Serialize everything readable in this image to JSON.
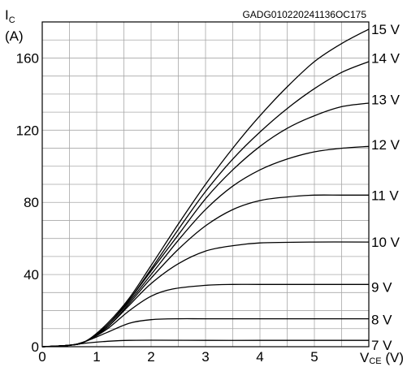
{
  "chart_data": {
    "type": "line",
    "code": "GADG010220241136OC175",
    "y_axis": {
      "symbol": "I",
      "subscript": "C",
      "unit": "(A)"
    },
    "x_axis": {
      "symbol": "V",
      "subscript": "CE",
      "unit": "(V)"
    },
    "xlim": [
      0,
      6
    ],
    "ylim": [
      0,
      180
    ],
    "x_ticks": [
      0,
      1,
      2,
      3,
      4,
      5
    ],
    "y_ticks": [
      0,
      40,
      80,
      120,
      160
    ],
    "grid": {
      "x_step": 0.5,
      "y_step": 10,
      "visible": true
    },
    "series": [
      {
        "name": "7 V",
        "label_y": 1,
        "points": [
          [
            0,
            0
          ],
          [
            0.5,
            0.8
          ],
          [
            0.8,
            2
          ],
          [
            1.2,
            3
          ],
          [
            1.6,
            3.5
          ],
          [
            2,
            3.6
          ],
          [
            3,
            3.5
          ],
          [
            4,
            3.5
          ],
          [
            5,
            3.5
          ],
          [
            6,
            3.5
          ]
        ]
      },
      {
        "name": "8 V",
        "label_y": 15,
        "points": [
          [
            0,
            0
          ],
          [
            0.5,
            0.8
          ],
          [
            0.8,
            3
          ],
          [
            1.2,
            8
          ],
          [
            1.6,
            13
          ],
          [
            2,
            15
          ],
          [
            2.5,
            15.5
          ],
          [
            3,
            15.5
          ],
          [
            4,
            15.5
          ],
          [
            5,
            15.5
          ],
          [
            6,
            15.5
          ]
        ]
      },
      {
        "name": "9 V",
        "label_y": 33,
        "points": [
          [
            0,
            0
          ],
          [
            0.5,
            0.8
          ],
          [
            0.8,
            3
          ],
          [
            1.2,
            10
          ],
          [
            1.6,
            20
          ],
          [
            2,
            28
          ],
          [
            2.4,
            32
          ],
          [
            3,
            34
          ],
          [
            3.5,
            34.5
          ],
          [
            4,
            34.5
          ],
          [
            5,
            34.5
          ],
          [
            6,
            34.5
          ]
        ]
      },
      {
        "name": "10 V",
        "label_y": 58,
        "points": [
          [
            0,
            0
          ],
          [
            0.5,
            0.8
          ],
          [
            0.8,
            3
          ],
          [
            1.2,
            11
          ],
          [
            1.6,
            23
          ],
          [
            2,
            35
          ],
          [
            2.5,
            46
          ],
          [
            3,
            53
          ],
          [
            3.5,
            56
          ],
          [
            4,
            57.5
          ],
          [
            5,
            58
          ],
          [
            6,
            58
          ]
        ]
      },
      {
        "name": "11 V",
        "label_y": 84,
        "points": [
          [
            0,
            0
          ],
          [
            0.5,
            0.8
          ],
          [
            0.8,
            3
          ],
          [
            1.2,
            11
          ],
          [
            1.6,
            24
          ],
          [
            2,
            38
          ],
          [
            2.5,
            54
          ],
          [
            3,
            67
          ],
          [
            3.5,
            76
          ],
          [
            4,
            81
          ],
          [
            4.5,
            83
          ],
          [
            5,
            84
          ],
          [
            5.5,
            84
          ],
          [
            6,
            84
          ]
        ]
      },
      {
        "name": "12 V",
        "label_y": 112,
        "points": [
          [
            0,
            0
          ],
          [
            0.5,
            0.8
          ],
          [
            0.8,
            3
          ],
          [
            1.2,
            12
          ],
          [
            1.6,
            25
          ],
          [
            2,
            40
          ],
          [
            2.5,
            59
          ],
          [
            3,
            76
          ],
          [
            3.5,
            89
          ],
          [
            4,
            98
          ],
          [
            4.5,
            104
          ],
          [
            5,
            108
          ],
          [
            5.5,
            110
          ],
          [
            6,
            111
          ]
        ]
      },
      {
        "name": "13 V",
        "label_y": 137,
        "points": [
          [
            0,
            0
          ],
          [
            0.5,
            0.8
          ],
          [
            0.8,
            3
          ],
          [
            1.2,
            12
          ],
          [
            1.6,
            26
          ],
          [
            2,
            42
          ],
          [
            2.5,
            62
          ],
          [
            3,
            82
          ],
          [
            3.5,
            98
          ],
          [
            4,
            111
          ],
          [
            4.5,
            121
          ],
          [
            5,
            128
          ],
          [
            5.5,
            133
          ],
          [
            6,
            135
          ]
        ]
      },
      {
        "name": "14 V",
        "label_y": 160,
        "points": [
          [
            0,
            0
          ],
          [
            0.5,
            0.8
          ],
          [
            0.8,
            3
          ],
          [
            1.2,
            12
          ],
          [
            1.6,
            26
          ],
          [
            2,
            43
          ],
          [
            2.5,
            65
          ],
          [
            3,
            86
          ],
          [
            3.5,
            104
          ],
          [
            4,
            119
          ],
          [
            4.5,
            132
          ],
          [
            5,
            143
          ],
          [
            5.5,
            152
          ],
          [
            6,
            158
          ]
        ]
      },
      {
        "name": "15 V",
        "label_y": 176,
        "points": [
          [
            0,
            0
          ],
          [
            0.5,
            0.8
          ],
          [
            0.8,
            3
          ],
          [
            1.2,
            13
          ],
          [
            1.6,
            27
          ],
          [
            2,
            45
          ],
          [
            2.5,
            68
          ],
          [
            3,
            90
          ],
          [
            3.5,
            110
          ],
          [
            4,
            128
          ],
          [
            4.5,
            144
          ],
          [
            5,
            158
          ],
          [
            5.5,
            168
          ],
          [
            6,
            176
          ]
        ]
      }
    ]
  }
}
